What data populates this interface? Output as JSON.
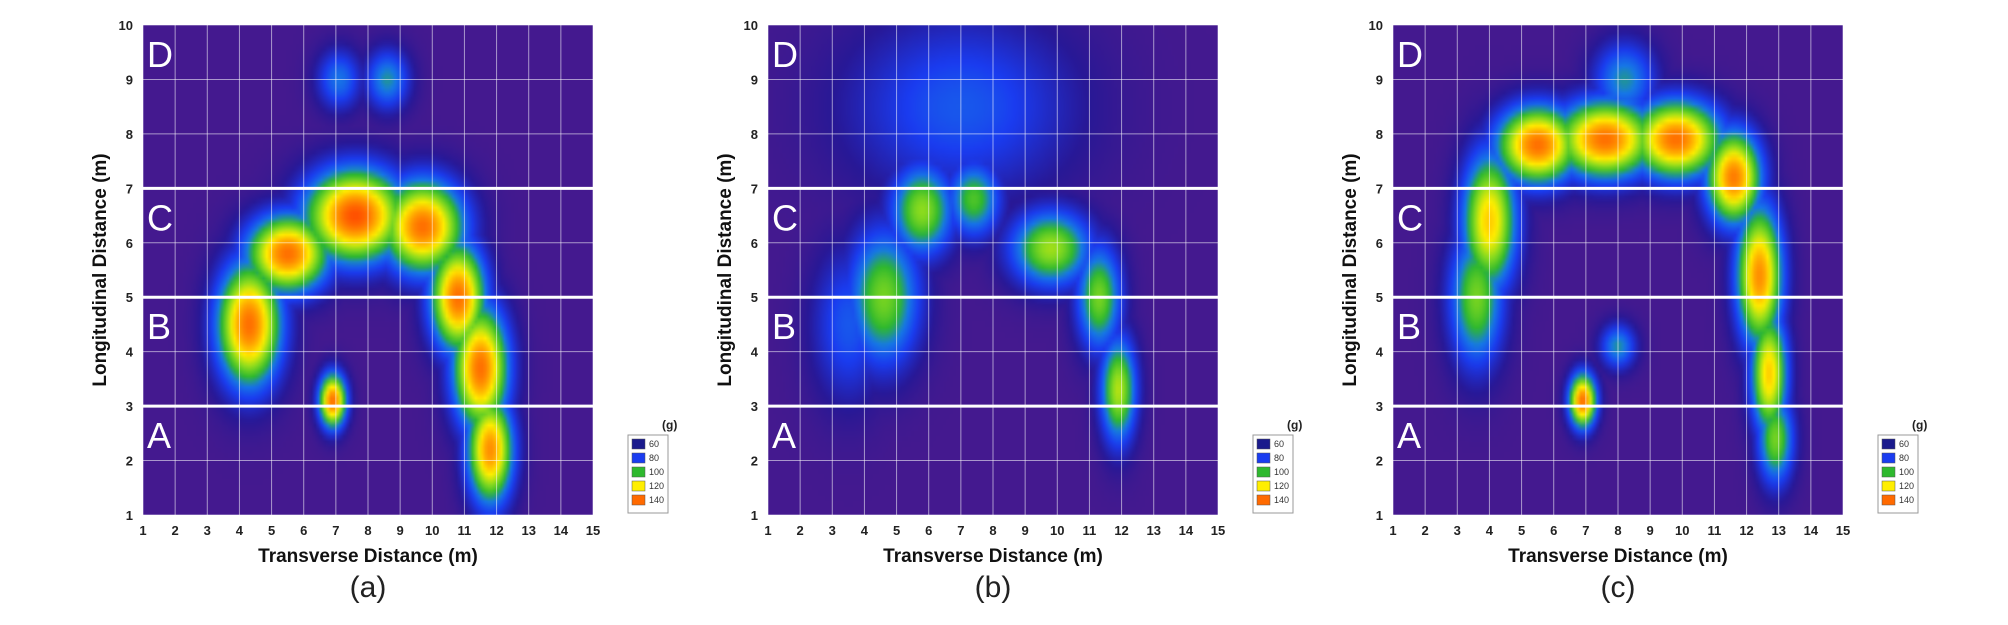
{
  "chart_data": [
    {
      "type": "heatmap",
      "panel_label": "(a)",
      "xlabel": "Transverse Distance (m)",
      "ylabel": "Longitudinal Distance (m)",
      "xlim": [
        1,
        15
      ],
      "ylim": [
        1,
        10
      ],
      "x_ticks": [
        "1",
        "2",
        "3",
        "4",
        "5",
        "6",
        "7",
        "8",
        "9",
        "10",
        "11",
        "12",
        "13",
        "14",
        "15"
      ],
      "y_ticks": [
        "1",
        "2",
        "3",
        "4",
        "5",
        "6",
        "7",
        "8",
        "9",
        "10"
      ],
      "zones": [
        {
          "label": "A",
          "y_from": 1,
          "y_to": 3
        },
        {
          "label": "B",
          "y_from": 3,
          "y_to": 5
        },
        {
          "label": "C",
          "y_from": 5,
          "y_to": 7
        },
        {
          "label": "D",
          "y_from": 7,
          "y_to": 10
        }
      ],
      "zone_boundaries": [
        3,
        5,
        7
      ],
      "hotspots": [
        {
          "x": 4.3,
          "y": 4.5,
          "value": 140,
          "sx": 0.7,
          "sy": 0.8
        },
        {
          "x": 5.5,
          "y": 5.8,
          "value": 140,
          "sx": 0.9,
          "sy": 0.5
        },
        {
          "x": 7.6,
          "y": 6.5,
          "value": 145,
          "sx": 1.1,
          "sy": 0.6
        },
        {
          "x": 9.7,
          "y": 6.3,
          "value": 140,
          "sx": 0.9,
          "sy": 0.6
        },
        {
          "x": 10.8,
          "y": 5.0,
          "value": 140,
          "sx": 0.6,
          "sy": 0.7
        },
        {
          "x": 11.5,
          "y": 3.7,
          "value": 140,
          "sx": 0.6,
          "sy": 0.8
        },
        {
          "x": 11.8,
          "y": 2.2,
          "value": 135,
          "sx": 0.5,
          "sy": 0.7
        },
        {
          "x": 6.9,
          "y": 3.1,
          "value": 140,
          "sx": 0.3,
          "sy": 0.35
        },
        {
          "x": 8.6,
          "y": 9.0,
          "value": 90,
          "sx": 0.5,
          "sy": 0.4
        },
        {
          "x": 7.1,
          "y": 9.0,
          "value": 85,
          "sx": 0.5,
          "sy": 0.4
        }
      ],
      "background_value": 55,
      "legend_title": "(g)",
      "legend": [
        {
          "label": "60",
          "color": "#1a1a8c"
        },
        {
          "label": "80",
          "color": "#1a3cf0"
        },
        {
          "label": "100",
          "color": "#2eb82e"
        },
        {
          "label": "120",
          "color": "#ffee00"
        },
        {
          "label": "140",
          "color": "#ff6a00"
        }
      ]
    },
    {
      "type": "heatmap",
      "panel_label": "(b)",
      "xlabel": "Transverse Distance (m)",
      "ylabel": "Longitudinal Distance (m)",
      "xlim": [
        1,
        15
      ],
      "ylim": [
        1,
        10
      ],
      "x_ticks": [
        "1",
        "2",
        "3",
        "4",
        "5",
        "6",
        "7",
        "8",
        "9",
        "10",
        "11",
        "12",
        "13",
        "14",
        "15"
      ],
      "y_ticks": [
        "1",
        "2",
        "3",
        "4",
        "5",
        "6",
        "7",
        "8",
        "9",
        "10"
      ],
      "zones": [
        {
          "label": "A",
          "y_from": 1,
          "y_to": 3
        },
        {
          "label": "B",
          "y_from": 3,
          "y_to": 5
        },
        {
          "label": "C",
          "y_from": 5,
          "y_to": 7
        },
        {
          "label": "D",
          "y_from": 7,
          "y_to": 10
        }
      ],
      "zone_boundaries": [
        3,
        5,
        7
      ],
      "hotspots": [
        {
          "x": 4.6,
          "y": 5.0,
          "value": 105,
          "sx": 0.8,
          "sy": 0.9
        },
        {
          "x": 5.8,
          "y": 6.6,
          "value": 108,
          "sx": 0.7,
          "sy": 0.6
        },
        {
          "x": 7.4,
          "y": 6.8,
          "value": 100,
          "sx": 0.6,
          "sy": 0.5
        },
        {
          "x": 9.8,
          "y": 5.9,
          "value": 110,
          "sx": 0.9,
          "sy": 0.5
        },
        {
          "x": 11.3,
          "y": 5.0,
          "value": 105,
          "sx": 0.5,
          "sy": 0.7
        },
        {
          "x": 11.9,
          "y": 3.3,
          "value": 112,
          "sx": 0.4,
          "sy": 0.7
        },
        {
          "x": 7.0,
          "y": 8.5,
          "value": 80,
          "sx": 2.5,
          "sy": 1.2
        },
        {
          "x": 3.5,
          "y": 4.5,
          "value": 80,
          "sx": 0.8,
          "sy": 1.0
        }
      ],
      "background_value": 55,
      "legend_title": "(g)",
      "legend": [
        {
          "label": "60",
          "color": "#1a1a8c"
        },
        {
          "label": "80",
          "color": "#1a3cf0"
        },
        {
          "label": "100",
          "color": "#2eb82e"
        },
        {
          "label": "120",
          "color": "#ffee00"
        },
        {
          "label": "140",
          "color": "#ff6a00"
        }
      ]
    },
    {
      "type": "heatmap",
      "panel_label": "(c)",
      "xlabel": "Transverse Distance (m)",
      "ylabel": "Longitudinal Distance (m)",
      "xlim": [
        1,
        15
      ],
      "ylim": [
        1,
        10
      ],
      "x_ticks": [
        "1",
        "2",
        "3",
        "4",
        "5",
        "6",
        "7",
        "8",
        "9",
        "10",
        "11",
        "12",
        "13",
        "14",
        "15"
      ],
      "y_ticks": [
        "1",
        "2",
        "3",
        "4",
        "5",
        "6",
        "7",
        "8",
        "9",
        "10"
      ],
      "zones": [
        {
          "label": "A",
          "y_from": 1,
          "y_to": 3
        },
        {
          "label": "B",
          "y_from": 3,
          "y_to": 5
        },
        {
          "label": "C",
          "y_from": 5,
          "y_to": 7
        },
        {
          "label": "D",
          "y_from": 7,
          "y_to": 10
        }
      ],
      "zone_boundaries": [
        3,
        5,
        7
      ],
      "hotspots": [
        {
          "x": 4.0,
          "y": 6.4,
          "value": 125,
          "sx": 0.6,
          "sy": 0.9
        },
        {
          "x": 3.6,
          "y": 5.0,
          "value": 105,
          "sx": 0.6,
          "sy": 0.9
        },
        {
          "x": 5.5,
          "y": 7.8,
          "value": 140,
          "sx": 0.9,
          "sy": 0.5
        },
        {
          "x": 7.6,
          "y": 7.9,
          "value": 140,
          "sx": 1.1,
          "sy": 0.5
        },
        {
          "x": 9.8,
          "y": 7.9,
          "value": 140,
          "sx": 1.0,
          "sy": 0.5
        },
        {
          "x": 11.6,
          "y": 7.2,
          "value": 138,
          "sx": 0.6,
          "sy": 0.6
        },
        {
          "x": 12.4,
          "y": 5.4,
          "value": 135,
          "sx": 0.5,
          "sy": 0.9
        },
        {
          "x": 12.7,
          "y": 3.6,
          "value": 125,
          "sx": 0.4,
          "sy": 0.8
        },
        {
          "x": 12.9,
          "y": 2.4,
          "value": 105,
          "sx": 0.4,
          "sy": 0.6
        },
        {
          "x": 6.9,
          "y": 3.1,
          "value": 140,
          "sx": 0.3,
          "sy": 0.35
        },
        {
          "x": 8.2,
          "y": 9.0,
          "value": 90,
          "sx": 0.7,
          "sy": 0.5
        },
        {
          "x": 8.0,
          "y": 4.1,
          "value": 90,
          "sx": 0.4,
          "sy": 0.3
        }
      ],
      "background_value": 55,
      "legend_title": "(g)",
      "legend": [
        {
          "label": "60",
          "color": "#1a1a8c"
        },
        {
          "label": "80",
          "color": "#1a3cf0"
        },
        {
          "label": "100",
          "color": "#2eb82e"
        },
        {
          "label": "120",
          "color": "#ffee00"
        },
        {
          "label": "140",
          "color": "#ff6a00"
        }
      ]
    }
  ],
  "colors": {
    "background": "#5a1a8a",
    "blue": "#1a3cf0",
    "green": "#2eb82e",
    "yellow": "#ffee00",
    "orange": "#ff6a00",
    "grid": "#ffffff"
  }
}
